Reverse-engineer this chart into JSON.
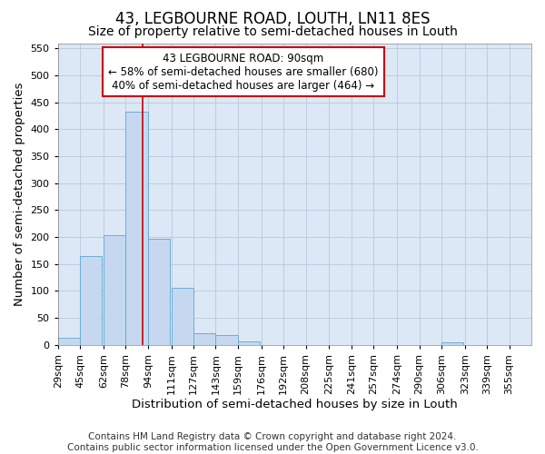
{
  "title": "43, LEGBOURNE ROAD, LOUTH, LN11 8ES",
  "subtitle": "Size of property relative to semi-detached houses in Louth",
  "xlabel": "Distribution of semi-detached houses by size in Louth",
  "ylabel": "Number of semi-detached properties",
  "annotation_title": "43 LEGBOURNE ROAD: 90sqm",
  "annotation_line1": "← 58% of semi-detached houses are smaller (680)",
  "annotation_line2": "40% of semi-detached houses are larger (464) →",
  "footer1": "Contains HM Land Registry data © Crown copyright and database right 2024.",
  "footer2": "Contains public sector information licensed under the Open Government Licence v3.0.",
  "bar_values": [
    13,
    165,
    203,
    432,
    196,
    106,
    22,
    18,
    6,
    0,
    0,
    0,
    0,
    0,
    0,
    0,
    0,
    4,
    0,
    0,
    0
  ],
  "bin_edges": [
    29,
    45,
    62,
    78,
    94,
    111,
    127,
    143,
    159,
    176,
    192,
    208,
    225,
    241,
    257,
    274,
    290,
    306,
    323,
    339,
    355
  ],
  "x_tick_labels": [
    "29sqm",
    "45sqm",
    "62sqm",
    "78sqm",
    "94sqm",
    "111sqm",
    "127sqm",
    "143sqm",
    "159sqm",
    "176sqm",
    "192sqm",
    "208sqm",
    "225sqm",
    "241sqm",
    "257sqm",
    "274sqm",
    "290sqm",
    "306sqm",
    "323sqm",
    "339sqm",
    "355sqm"
  ],
  "bar_color": "#c5d8f0",
  "bar_edge_color": "#6baed6",
  "vline_x": 90,
  "vline_color": "#cc0000",
  "ylim": [
    0,
    560
  ],
  "yticks": [
    0,
    50,
    100,
    150,
    200,
    250,
    300,
    350,
    400,
    450,
    500,
    550
  ],
  "grid_color": "#b8c8dc",
  "bg_color": "#dce8f5",
  "annotation_box_color": "#cc0000",
  "title_fontsize": 12,
  "subtitle_fontsize": 10,
  "axis_label_fontsize": 9.5,
  "tick_fontsize": 8,
  "footer_fontsize": 7.5
}
